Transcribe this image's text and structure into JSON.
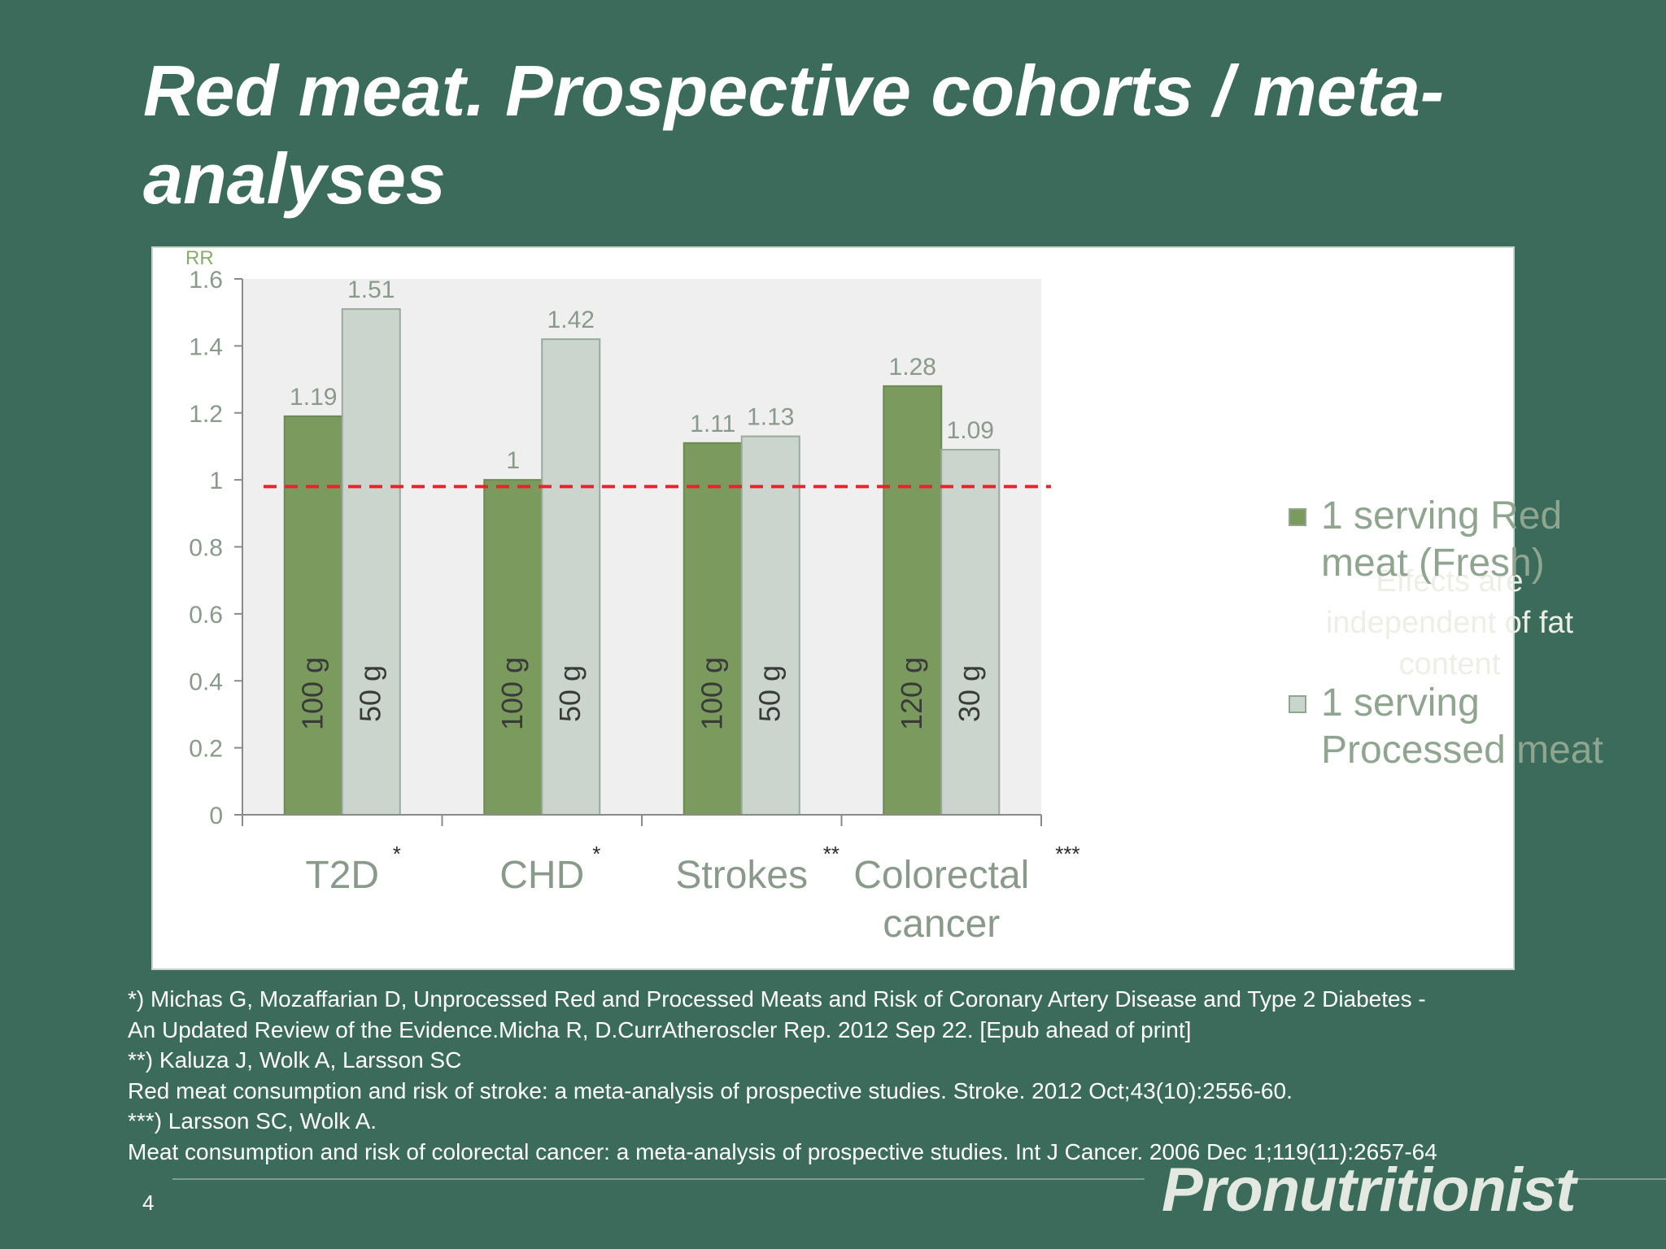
{
  "slide": {
    "title": "Red meat. Prospective cohorts / meta-analyses",
    "page_number": "4",
    "logo_text": "Pronutritionist"
  },
  "chart_data": {
    "type": "bar",
    "ylabel": "RR",
    "ylim": [
      0,
      1.6
    ],
    "yticks": [
      "0",
      "0.2",
      "0.4",
      "0.6",
      "0.8",
      "1",
      "1.2",
      "1.4",
      "1.6"
    ],
    "categories": [
      "T2D",
      "CHD",
      "Strokes",
      "Colorectal cancer"
    ],
    "category_marks": [
      "*",
      "*",
      "**",
      "***"
    ],
    "series": [
      {
        "name": "1 serving Red meat (Fresh)",
        "color": "#7a9a5e",
        "values": [
          1.19,
          1,
          1.11,
          1.28
        ],
        "value_labels": [
          "1.19",
          "1",
          "1.11",
          "1.28"
        ],
        "serving_labels": [
          "100 g",
          "100 g",
          "100 g",
          "120 g"
        ]
      },
      {
        "name": "1 serving Processed meat",
        "color": "#cad6cd",
        "values": [
          1.51,
          1.42,
          1.13,
          1.09
        ],
        "value_labels": [
          "1.51",
          "1.42",
          "1.13",
          "1.09"
        ],
        "serving_labels": [
          "50 g",
          "50 g",
          "50 g",
          "30 g"
        ]
      }
    ],
    "reference_line": {
      "value": 0.98,
      "color": "#e8232a",
      "style": "dashed"
    },
    "annotation": "Effects are independent of fat content",
    "legend_position": "right",
    "grid": false
  },
  "references": [
    "*) Michas G, Mozaffarian D, Unprocessed Red and Processed Meats and Risk of Coronary Artery Disease and Type 2 Diabetes -",
    "An Updated Review of the Evidence.Micha R, D.CurrAtheroscler Rep. 2012 Sep 22. [Epub ahead of print]",
    "**) Kaluza J, Wolk A, Larsson SC",
    "Red meat consumption and risk of stroke: a meta-analysis of prospective studies. Stroke. 2012 Oct;43(10):2556-60.",
    "***) Larsson SC, Wolk A.",
    "Meat consumption and risk of colorectal cancer: a meta-analysis of prospective studies. Int J Cancer. 2006 Dec 1;119(11):2657-64"
  ]
}
